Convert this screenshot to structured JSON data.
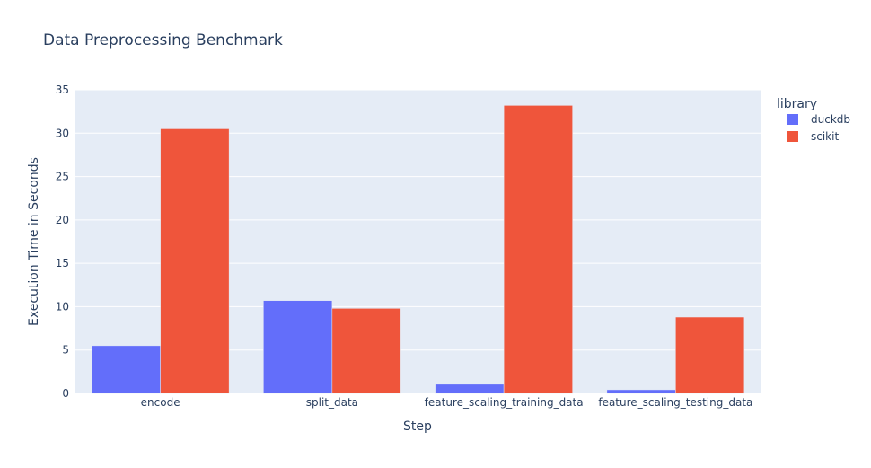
{
  "chart_data": {
    "type": "bar",
    "title": "Data Preprocessing Benchmark",
    "xlabel": "Step",
    "ylabel": "Execution Time in Seconds",
    "categories": [
      "encode",
      "split_data",
      "feature_scaling_training_data",
      "feature_scaling_testing_data"
    ],
    "series": [
      {
        "name": "duckdb",
        "color": "#636efa",
        "values": [
          5.5,
          10.7,
          1.05,
          0.42
        ]
      },
      {
        "name": "scikit",
        "color": "#ef553b",
        "values": [
          30.5,
          9.8,
          33.2,
          8.8
        ]
      }
    ],
    "ylim": [
      0,
      35
    ],
    "yticks": [
      0,
      5,
      10,
      15,
      20,
      25,
      30,
      35
    ],
    "grid": true,
    "legend": {
      "title": "library",
      "placement": "right"
    },
    "plot_bg": "#e5ecf6"
  }
}
